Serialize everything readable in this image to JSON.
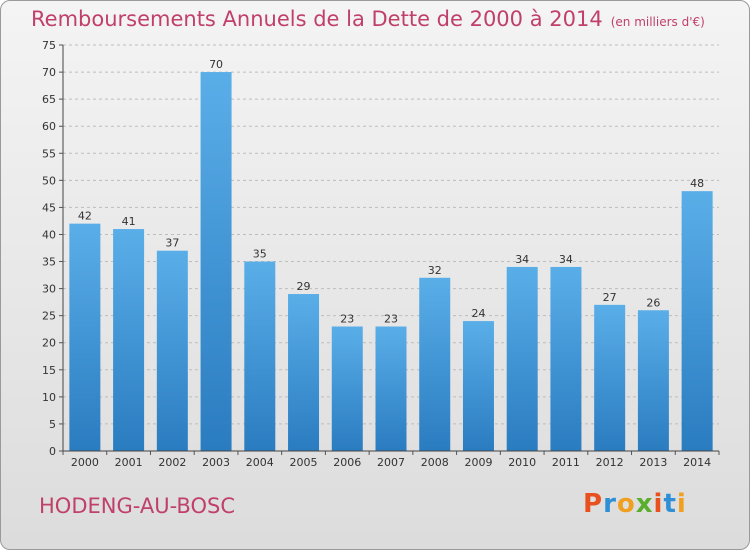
{
  "header": {
    "title": "Remboursements Annuels de la Dette de 2000 à 2014",
    "subtitle": "(en milliers d'€)"
  },
  "footer": {
    "commune": "HODENG-AU-BOSC",
    "logo": "Proxiti",
    "logo_colors": [
      "#e8501f",
      "#2e8fd6",
      "#f0a020",
      "#5aae2e",
      "#e8501f",
      "#2e8fd6",
      "#f0a020"
    ]
  },
  "colors": {
    "bar_top": "#5aaee8",
    "bar_bottom": "#2a7cc0",
    "grid": "#bdbdbd",
    "title": "#c0406a"
  },
  "chart_data": {
    "type": "bar",
    "title": "Remboursements Annuels de la Dette de 2000 à 2014",
    "subtitle": "(en milliers d'€)",
    "xlabel": "",
    "ylabel": "",
    "categories": [
      "2000",
      "2001",
      "2002",
      "2003",
      "2004",
      "2005",
      "2006",
      "2007",
      "2008",
      "2009",
      "2010",
      "2011",
      "2012",
      "2013",
      "2014"
    ],
    "values": [
      42,
      41,
      37,
      70,
      35,
      29,
      23,
      23,
      32,
      24,
      34,
      34,
      27,
      26,
      48
    ],
    "ylim": [
      0,
      75
    ],
    "yticks": [
      0,
      5,
      10,
      15,
      20,
      25,
      30,
      35,
      40,
      45,
      50,
      55,
      60,
      65,
      70,
      75
    ],
    "grid": "dashed horizontal",
    "legend": "none",
    "data_labels": true
  }
}
